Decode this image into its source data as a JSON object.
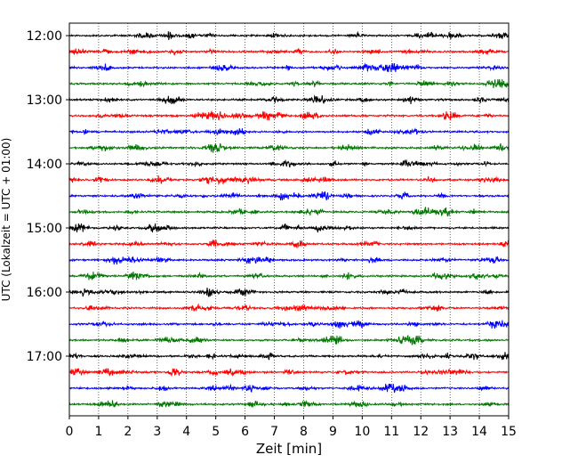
{
  "chart_data": {
    "type": "line",
    "title": "",
    "xlabel": "Zeit  [min]",
    "ylabel": "UTC (Lokalzeit = UTC + 01:00)",
    "xlim": [
      0,
      15
    ],
    "xticks": [
      "0",
      "1",
      "2",
      "3",
      "4",
      "5",
      "6",
      "7",
      "8",
      "9",
      "10",
      "11",
      "12",
      "13",
      "14",
      "15"
    ],
    "yticks": [
      "12:00",
      "13:00",
      "14:00",
      "15:00",
      "16:00",
      "17:00"
    ],
    "grid": "vertical dotted",
    "trace_interval_minutes": 15,
    "trace_colors": [
      "#000000",
      "#ff0000",
      "#0000ff",
      "#007700"
    ],
    "traces": [
      {
        "time": "12:00",
        "color": "#000000"
      },
      {
        "time": "12:15",
        "color": "#ff0000"
      },
      {
        "time": "12:30",
        "color": "#0000ff"
      },
      {
        "time": "12:45",
        "color": "#007700"
      },
      {
        "time": "13:00",
        "color": "#000000"
      },
      {
        "time": "13:15",
        "color": "#ff0000"
      },
      {
        "time": "13:30",
        "color": "#0000ff"
      },
      {
        "time": "13:45",
        "color": "#007700"
      },
      {
        "time": "14:00",
        "color": "#000000"
      },
      {
        "time": "14:15",
        "color": "#ff0000"
      },
      {
        "time": "14:30",
        "color": "#0000ff"
      },
      {
        "time": "14:45",
        "color": "#007700"
      },
      {
        "time": "15:00",
        "color": "#000000"
      },
      {
        "time": "15:15",
        "color": "#ff0000"
      },
      {
        "time": "15:30",
        "color": "#0000ff"
      },
      {
        "time": "15:45",
        "color": "#007700"
      },
      {
        "time": "16:00",
        "color": "#000000"
      },
      {
        "time": "16:15",
        "color": "#ff0000"
      },
      {
        "time": "16:30",
        "color": "#0000ff"
      },
      {
        "time": "16:45",
        "color": "#007700"
      },
      {
        "time": "17:00",
        "color": "#000000"
      },
      {
        "time": "17:15",
        "color": "#ff0000"
      },
      {
        "time": "17:30",
        "color": "#0000ff"
      },
      {
        "time": "17:45",
        "color": "#007700"
      }
    ]
  }
}
